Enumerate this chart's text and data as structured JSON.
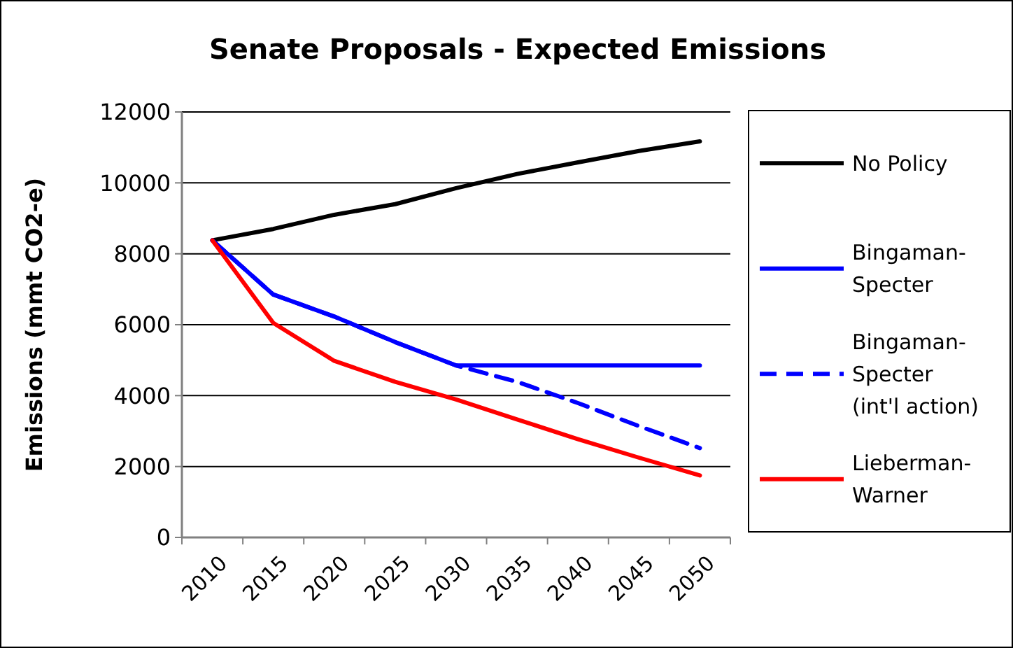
{
  "chart_data": {
    "type": "line",
    "title": "Senate Proposals - Expected Emissions",
    "ylabel": "Emissions (mmt CO2-e)",
    "categories": [
      "2010",
      "2015",
      "2020",
      "2025",
      "2030",
      "2035",
      "2040",
      "2045",
      "2050"
    ],
    "series": [
      {
        "name": "No Policy",
        "color": "#000000",
        "values": [
          8380,
          8700,
          9100,
          9400,
          9850,
          10250,
          10580,
          10900,
          11170
        ]
      },
      {
        "name": "Bingaman-Specter",
        "color": "#0000ff",
        "values": [
          8380,
          6850,
          6230,
          5510,
          4850,
          4850,
          4850,
          4850,
          4850
        ]
      },
      {
        "name": "Bingaman-Specter (int'l action)",
        "color": "#0000ff",
        "line_style": "dashed",
        "values": [
          8380,
          6850,
          6230,
          5510,
          4850,
          4390,
          3790,
          3140,
          2520
        ]
      },
      {
        "name": "Lieberman-Warner",
        "color": "#ff0000",
        "values": [
          8380,
          6050,
          4980,
          4390,
          3890,
          3330,
          2770,
          2250,
          1750
        ]
      }
    ],
    "ylim": [
      0,
      12000
    ],
    "yticks": [
      0,
      2000,
      4000,
      6000,
      8000,
      10000,
      12000
    ],
    "grid": "y",
    "legend": "right",
    "marker": "none"
  }
}
